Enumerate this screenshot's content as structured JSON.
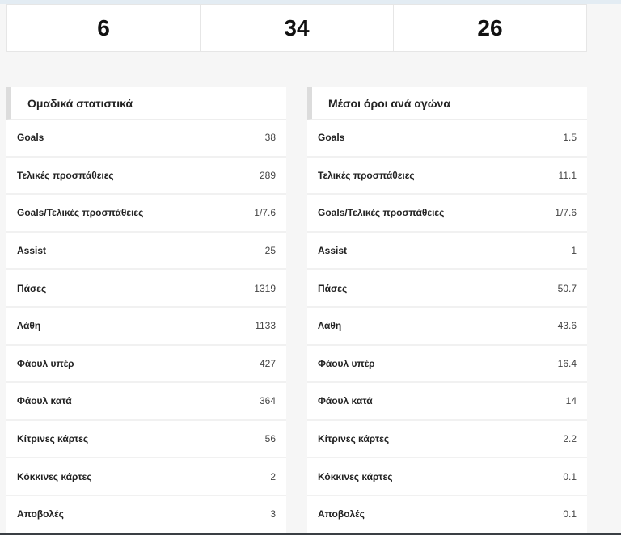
{
  "summary_boxes": [
    "6",
    "34",
    "26"
  ],
  "team_stats": {
    "title": "Ομαδικά στατιστικά",
    "rows": [
      {
        "label": "Goals",
        "value": "38"
      },
      {
        "label": "Τελικές προσπάθειες",
        "value": "289"
      },
      {
        "label": "Goals/Τελικές προσπάθειες",
        "value": "1/7.6"
      },
      {
        "label": "Assist",
        "value": "25"
      },
      {
        "label": "Πάσες",
        "value": "1319"
      },
      {
        "label": "Λάθη",
        "value": "1133"
      },
      {
        "label": "Φάουλ υπέρ",
        "value": "427"
      },
      {
        "label": "Φάουλ κατά",
        "value": "364"
      },
      {
        "label": "Κίτρινες κάρτες",
        "value": "56"
      },
      {
        "label": "Κόκκινες κάρτες",
        "value": "2"
      },
      {
        "label": "Αποβολές",
        "value": "3"
      }
    ]
  },
  "per_game": {
    "title": "Μέσοι όροι ανά αγώνα",
    "rows": [
      {
        "label": "Goals",
        "value": "1.5"
      },
      {
        "label": "Τελικές προσπάθειες",
        "value": "11.1"
      },
      {
        "label": "Goals/Τελικές προσπάθειες",
        "value": "1/7.6"
      },
      {
        "label": "Assist",
        "value": "1"
      },
      {
        "label": "Πάσες",
        "value": "50.7"
      },
      {
        "label": "Λάθη",
        "value": "43.6"
      },
      {
        "label": "Φάουλ υπέρ",
        "value": "16.4"
      },
      {
        "label": "Φάουλ κατά",
        "value": "14"
      },
      {
        "label": "Κίτρινες κάρτες",
        "value": "2.2"
      },
      {
        "label": "Κόκκινες κάρτες",
        "value": "0.1"
      },
      {
        "label": "Αποβολές",
        "value": "0.1"
      }
    ]
  }
}
